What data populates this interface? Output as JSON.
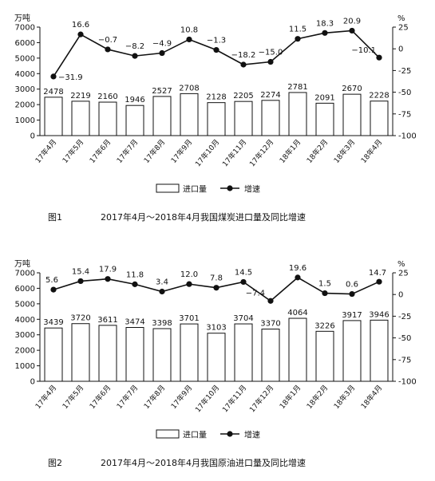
{
  "chart_data": [
    {
      "type": "bar+line",
      "title": "2017年4月～2018年4月我国煤炭进口量及同比增速",
      "figure_label": "图1",
      "left_unit": "万吨",
      "right_unit": "%",
      "categories": [
        "17年4月",
        "17年5月",
        "17年6月",
        "17年7月",
        "17年8月",
        "17年9月",
        "17年10月",
        "17年11月",
        "17年12月",
        "18年1月",
        "18年2月",
        "18年3月",
        "18年4月"
      ],
      "series": [
        {
          "name": "进口量",
          "axis": "left",
          "type": "bar",
          "values": [
            2478,
            2219,
            2160,
            1946,
            2527,
            2708,
            2128,
            2205,
            2274,
            2781,
            2091,
            2670,
            2228
          ]
        },
        {
          "name": "增速",
          "axis": "right",
          "type": "line",
          "values": [
            -31.9,
            16.6,
            -0.7,
            -8.2,
            -4.9,
            10.8,
            -1.3,
            -18.2,
            -15.0,
            11.5,
            18.3,
            20.9,
            -10.1
          ]
        }
      ],
      "ylim_left": [
        0,
        7000
      ],
      "yticks_left": [
        "0",
        "1000",
        "2000",
        "3000",
        "4000",
        "5000",
        "6000",
        "7000"
      ],
      "ylim_right": [
        -100,
        25
      ],
      "yticks_right": [
        "25",
        "0",
        "-25",
        "-50",
        "-75",
        "-100"
      ],
      "legend_bar": "进口量",
      "legend_line": "增速"
    },
    {
      "type": "bar+line",
      "title": "2017年4月～2018年4月我国原油进口量及同比增速",
      "figure_label": "图2",
      "left_unit": "万吨",
      "right_unit": "%",
      "categories": [
        "17年4月",
        "17年5月",
        "17年6月",
        "17年7月",
        "17年8月",
        "17年9月",
        "17年10月",
        "17年11月",
        "17年12月",
        "18年1月",
        "18年2月",
        "18年3月",
        "18年4月"
      ],
      "series": [
        {
          "name": "进口量",
          "axis": "left",
          "type": "bar",
          "values": [
            3439,
            3720,
            3611,
            3474,
            3398,
            3701,
            3103,
            3704,
            3370,
            4064,
            3226,
            3917,
            3946
          ]
        },
        {
          "name": "增速",
          "axis": "right",
          "type": "line",
          "values": [
            5.6,
            15.4,
            17.9,
            11.8,
            3.4,
            12.0,
            7.8,
            14.5,
            -7.4,
            19.6,
            1.5,
            0.6,
            14.7
          ]
        }
      ],
      "ylim_left": [
        0,
        7000
      ],
      "yticks_left": [
        "0",
        "1000",
        "2000",
        "3000",
        "4000",
        "5000",
        "6000",
        "7000"
      ],
      "ylim_right": [
        -100,
        25
      ],
      "yticks_right": [
        "25",
        "0",
        "-25",
        "-50",
        "-75",
        "-100"
      ],
      "legend_bar": "进口量",
      "legend_line": "增速"
    }
  ]
}
